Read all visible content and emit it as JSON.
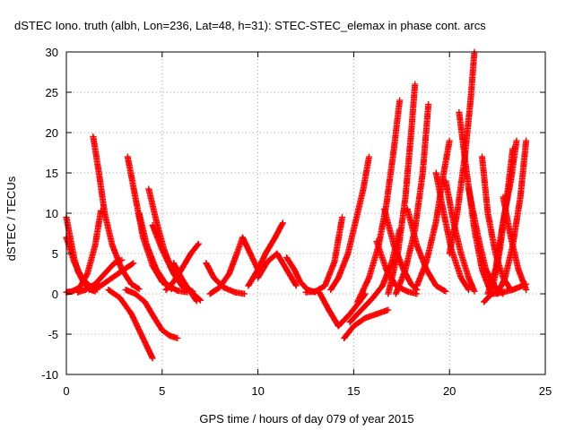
{
  "chart_data": {
    "type": "scatter",
    "title": "dSTEC Iono. truth (albh, Lon=236, Lat=48, h=31): STEC-STEC_elemax in phase cont. arcs",
    "xlabel": "GPS time / hours of day 079 of year 2015",
    "ylabel": "dSTEC  / TECUs",
    "xlim": [
      0,
      25
    ],
    "ylim": [
      -10,
      30
    ],
    "xticks": [
      0,
      5,
      10,
      15,
      20,
      25
    ],
    "yticks": [
      -10,
      -5,
      0,
      5,
      10,
      15,
      20,
      25,
      30
    ],
    "grid": true,
    "marker": "+",
    "color": "#ff0000",
    "series": [
      {
        "x": [
          0.0,
          0.2,
          0.4,
          0.6,
          0.9,
          1.2,
          1.5
        ],
        "y": [
          9.5,
          7.0,
          4.5,
          2.8,
          1.4,
          0.6,
          0.3
        ]
      },
      {
        "x": [
          0.0,
          0.3,
          0.7,
          1.1,
          1.5,
          1.8
        ],
        "y": [
          0.2,
          0.3,
          0.8,
          2.5,
          6.0,
          10.3
        ]
      },
      {
        "x": [
          0.0,
          0.4,
          0.8,
          1.2,
          1.6
        ],
        "y": [
          7.0,
          4.0,
          2.0,
          1.0,
          0.5
        ]
      },
      {
        "x": [
          1.4,
          1.7,
          2.0,
          2.4,
          2.9,
          3.4,
          3.8
        ],
        "y": [
          19.5,
          15.0,
          10.0,
          6.0,
          3.0,
          1.2,
          0.6
        ]
      },
      {
        "x": [
          0.6,
          1.0,
          1.5,
          2.0,
          2.5,
          2.9
        ],
        "y": [
          0.2,
          0.5,
          1.2,
          2.5,
          3.8,
          4.2
        ]
      },
      {
        "x": [
          1.2,
          1.8,
          2.4,
          3.0,
          3.5
        ],
        "y": [
          0.5,
          1.0,
          2.0,
          3.0,
          3.8
        ]
      },
      {
        "x": [
          2.2,
          2.8,
          3.4,
          3.9,
          4.3,
          4.5
        ],
        "y": [
          0.5,
          -0.5,
          -2.5,
          -5.0,
          -7.0,
          -8.0
        ]
      },
      {
        "x": [
          3.1,
          3.6,
          4.1,
          4.6,
          5.0,
          5.4,
          5.8
        ],
        "y": [
          0.5,
          0.0,
          -1.0,
          -3.0,
          -4.5,
          -5.2,
          -5.5
        ]
      },
      {
        "x": [
          3.2,
          3.6,
          4.0,
          4.5,
          5.0,
          5.5
        ],
        "y": [
          17.0,
          12.0,
          7.0,
          3.5,
          1.5,
          0.6
        ]
      },
      {
        "x": [
          3.8,
          4.2,
          4.7,
          5.2,
          5.8,
          6.3
        ],
        "y": [
          10.0,
          6.0,
          3.0,
          1.2,
          0.4,
          0.2
        ]
      },
      {
        "x": [
          4.3,
          4.7,
          5.1,
          5.6,
          6.1,
          6.6
        ],
        "y": [
          13.0,
          9.0,
          5.5,
          2.5,
          0.8,
          0.3
        ]
      },
      {
        "x": [
          4.5,
          5.0,
          5.5,
          6.0,
          6.5,
          7.0
        ],
        "y": [
          8.5,
          5.5,
          3.0,
          1.2,
          0.3,
          -0.8
        ]
      },
      {
        "x": [
          5.2,
          5.6,
          6.0,
          6.5,
          6.9
        ],
        "y": [
          0.5,
          1.5,
          3.0,
          5.0,
          6.2
        ]
      },
      {
        "x": [
          5.6,
          6.0,
          6.4,
          6.8
        ],
        "y": [
          3.8,
          2.0,
          0.5,
          -0.9
        ]
      },
      {
        "x": [
          7.3,
          7.7,
          8.2,
          8.8,
          9.3
        ],
        "y": [
          3.8,
          2.0,
          0.8,
          0.2,
          0.0
        ]
      },
      {
        "x": [
          7.5,
          8.0,
          8.5,
          8.9,
          9.2,
          9.5,
          10.0
        ],
        "y": [
          0.0,
          0.8,
          2.5,
          5.0,
          7.0,
          5.5,
          3.0
        ]
      },
      {
        "x": [
          9.5,
          10.0,
          10.4,
          10.9,
          11.3
        ],
        "y": [
          1.0,
          3.0,
          5.0,
          7.0,
          8.8
        ]
      },
      {
        "x": [
          10.0,
          10.5,
          11.0,
          11.5,
          12.0
        ],
        "y": [
          2.0,
          4.0,
          5.0,
          3.0,
          1.0
        ]
      },
      {
        "x": [
          11.5,
          11.9,
          12.2,
          12.6,
          13.0
        ],
        "y": [
          4.5,
          3.0,
          1.5,
          0.5,
          0.2
        ]
      },
      {
        "x": [
          12.5,
          13.0,
          13.5,
          14.0,
          14.4
        ],
        "y": [
          0.2,
          0.3,
          1.0,
          4.0,
          9.5
        ]
      },
      {
        "x": [
          13.2,
          13.7,
          14.2,
          14.8,
          15.3,
          15.6
        ],
        "y": [
          0.2,
          -2.0,
          -4.0,
          -2.5,
          -1.0,
          0.0
        ]
      },
      {
        "x": [
          13.8,
          14.2,
          14.7,
          15.1,
          15.5,
          15.8
        ],
        "y": [
          0.5,
          2.0,
          5.0,
          9.0,
          13.0,
          17.0
        ]
      },
      {
        "x": [
          14.5,
          15.0,
          15.6,
          16.2,
          16.8
        ],
        "y": [
          -5.5,
          -4.0,
          -3.0,
          -2.5,
          -2.0
        ]
      },
      {
        "x": [
          14.8,
          15.4,
          16.0,
          16.5,
          17.0,
          17.4
        ],
        "y": [
          -3.5,
          -2.0,
          -0.5,
          1.0,
          4.0,
          8.0
        ]
      },
      {
        "x": [
          15.2,
          15.8,
          16.3,
          16.7,
          17.1,
          17.4
        ],
        "y": [
          -1.0,
          2.0,
          6.0,
          11.0,
          18.0,
          24.0
        ]
      },
      {
        "x": [
          16.2,
          16.7,
          17.2,
          17.8,
          18.3
        ],
        "y": [
          6.5,
          3.0,
          1.0,
          0.3,
          0.0
        ]
      },
      {
        "x": [
          16.6,
          17.1,
          17.6,
          18.0,
          18.3
        ],
        "y": [
          10.5,
          6.0,
          3.0,
          1.2,
          0.5
        ]
      },
      {
        "x": [
          16.8,
          17.3,
          17.7,
          18.0,
          18.2
        ],
        "y": [
          0.0,
          5.0,
          12.0,
          20.0,
          26.0
        ]
      },
      {
        "x": [
          17.2,
          17.7,
          18.2,
          18.6,
          18.9
        ],
        "y": [
          0.0,
          3.0,
          8.0,
          15.0,
          23.5
        ]
      },
      {
        "x": [
          17.8,
          18.3,
          18.8,
          19.3,
          19.8
        ],
        "y": [
          10.5,
          6.0,
          3.0,
          1.0,
          0.3
        ]
      },
      {
        "x": [
          18.3,
          18.8,
          19.3,
          19.7,
          20.0
        ],
        "y": [
          1.0,
          4.0,
          9.0,
          15.0,
          19.0
        ]
      },
      {
        "x": [
          19.3,
          19.7,
          20.1,
          20.6,
          21.0
        ],
        "y": [
          15.0,
          10.0,
          5.5,
          2.0,
          0.5
        ]
      },
      {
        "x": [
          19.8,
          20.2,
          20.6,
          21.0,
          21.3
        ],
        "y": [
          14.0,
          9.0,
          5.0,
          2.0,
          0.3
        ]
      },
      {
        "x": [
          20.0,
          20.4,
          20.8,
          21.1,
          21.3
        ],
        "y": [
          5.0,
          10.0,
          17.0,
          24.0,
          30.0
        ]
      },
      {
        "x": [
          20.5,
          20.9,
          21.3,
          21.7,
          22.1
        ],
        "y": [
          22.5,
          15.0,
          8.0,
          3.0,
          0.5
        ]
      },
      {
        "x": [
          21.0,
          21.5,
          21.9,
          22.4,
          22.8
        ],
        "y": [
          13.0,
          7.0,
          3.0,
          0.8,
          0.0
        ]
      },
      {
        "x": [
          21.7,
          22.0,
          22.4,
          22.8,
          23.2
        ],
        "y": [
          17.0,
          10.0,
          5.0,
          2.0,
          0.5
        ]
      },
      {
        "x": [
          21.8,
          22.2,
          22.6,
          23.0,
          23.3
        ],
        "y": [
          -1.0,
          0.0,
          5.0,
          12.0,
          18.0
        ]
      },
      {
        "x": [
          22.0,
          22.4,
          22.8,
          23.2,
          23.5
        ],
        "y": [
          0.0,
          3.0,
          9.0,
          14.0,
          19.0
        ]
      },
      {
        "x": [
          22.5,
          22.9,
          23.3,
          23.7,
          24.0
        ],
        "y": [
          0.0,
          2.0,
          6.0,
          12.0,
          19.0
        ]
      },
      {
        "x": [
          22.8,
          23.2,
          23.6,
          24.0
        ],
        "y": [
          12.0,
          7.0,
          3.0,
          0.5
        ]
      },
      {
        "x": [
          22.3,
          22.8,
          23.3,
          23.8,
          24.0
        ],
        "y": [
          0.0,
          0.2,
          0.5,
          1.0,
          1.2
        ]
      }
    ]
  }
}
